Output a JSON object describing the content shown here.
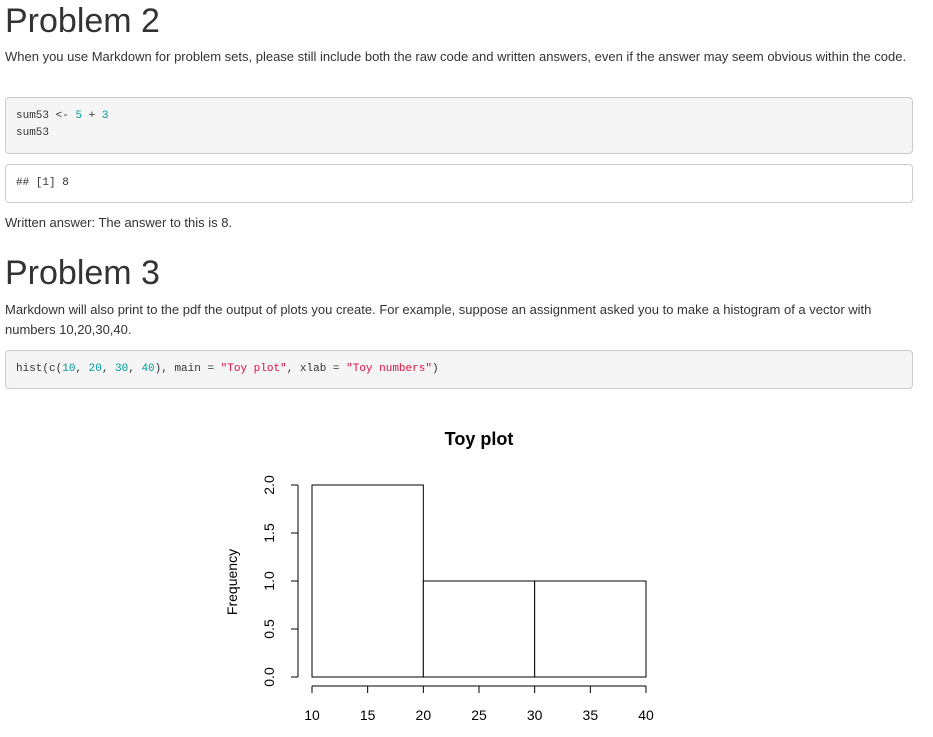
{
  "problem2": {
    "title": "Problem 2",
    "text": "When you use Markdown for problem sets, please still include both the raw code and written answers, even if the answer may seem obvious within the code.",
    "code": {
      "line1_var": "sum53",
      "line1_op": "<-",
      "line1_a": "5",
      "line1_plus": "+",
      "line1_b": "3",
      "line2": "sum53"
    },
    "output": "## [1] 8",
    "answer": "Written answer: The answer to this is 8."
  },
  "problem3": {
    "title": "Problem 3",
    "text": "Markdown will also print to the pdf the output of plots you create. For example, suppose an assignment asked you to make a histogram of a vector with numbers 10,20,30,40.",
    "code": {
      "fn": "hist(c(",
      "n1": "10",
      "sep1": ", ",
      "n2": "20",
      "sep2": ", ",
      "n3": "30",
      "sep3": ", ",
      "n4": "40",
      "mid": "), main ",
      "eq1": "=",
      "s1": "\"Toy plot\"",
      "mid2": ", xlab ",
      "eq2": "=",
      "s2": "\"Toy numbers\"",
      "end": ")"
    }
  },
  "chart_data": {
    "type": "bar",
    "title": "Toy plot",
    "ylabel": "Frequency",
    "xlabel": "",
    "bins": [
      {
        "from": 10,
        "to": 20,
        "value": 2
      },
      {
        "from": 20,
        "to": 30,
        "value": 1
      },
      {
        "from": 30,
        "to": 40,
        "value": 1
      }
    ],
    "xlim": [
      10,
      40
    ],
    "ylim": [
      0,
      2
    ],
    "xticks": [
      "10",
      "15",
      "20",
      "25",
      "30",
      "35",
      "40"
    ],
    "yticks": [
      "0.0",
      "0.5",
      "1.0",
      "1.5",
      "2.0"
    ],
    "grid": false,
    "legend": "none"
  }
}
